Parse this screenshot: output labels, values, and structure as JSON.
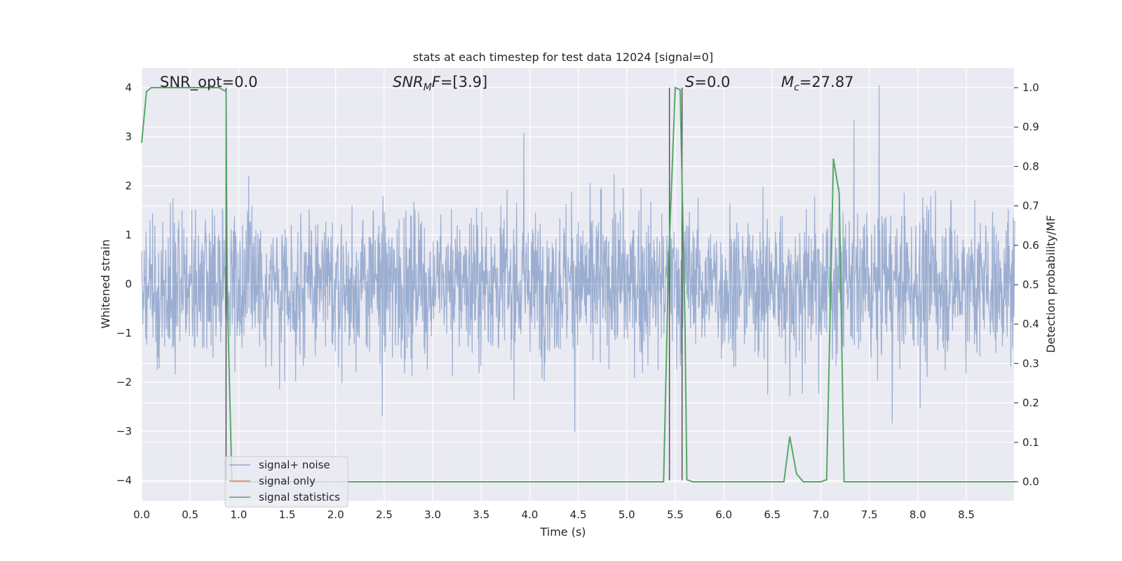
{
  "chart_data": {
    "type": "line",
    "title": "stats at each timestep for test data 12024 [signal=0]",
    "xlabel": "Time (s)",
    "ylabel": "Whitened strain",
    "y2label": "Detection probability/MF",
    "xlim": [
      0,
      9.0
    ],
    "ylim": [
      -4.4,
      4.4
    ],
    "y2lim": [
      -0.05,
      1.05
    ],
    "xticks": [
      "0.0",
      "0.5",
      "1.0",
      "1.5",
      "2.0",
      "2.5",
      "3.0",
      "3.5",
      "4.0",
      "4.5",
      "5.0",
      "5.5",
      "6.0",
      "6.5",
      "7.0",
      "7.5",
      "8.0",
      "8.5"
    ],
    "yticks": [
      "−4",
      "−3",
      "−2",
      "−1",
      "0",
      "1",
      "2",
      "3",
      "4"
    ],
    "y2ticks": [
      "0.0",
      "0.1",
      "0.2",
      "0.3",
      "0.4",
      "0.5",
      "0.6",
      "0.7",
      "0.8",
      "0.9",
      "1.0"
    ],
    "grid": true,
    "legend_placement": "lower-left",
    "colors": {
      "background": "#eaeaf2",
      "grid": "#ffffff",
      "noise": "#4c72b0",
      "signal_only": "#dd8452",
      "statistics": "#55a868",
      "vlines": "#555555"
    },
    "series": [
      {
        "name": "signal+ noise",
        "description_values": "dense whitened noise, mostly within ±2, peaks near ±4",
        "noise_sigma": 1.0
      },
      {
        "name": "signal only",
        "values": []
      },
      {
        "name": "signal statistics",
        "axis": "right",
        "x": [
          0.0,
          0.05,
          0.1,
          0.2,
          0.3,
          0.4,
          0.5,
          0.6,
          0.7,
          0.8,
          0.87,
          0.88,
          0.93,
          0.95,
          1.0,
          2.0,
          3.0,
          4.0,
          5.0,
          5.38,
          5.43,
          5.5,
          5.55,
          5.6,
          5.62,
          5.68,
          6.0,
          6.5,
          6.62,
          6.68,
          6.75,
          6.82,
          7.0,
          7.06,
          7.13,
          7.19,
          7.24,
          7.5,
          8.0,
          8.5,
          9.0
        ],
        "y": [
          0.86,
          0.99,
          1.0,
          1.0,
          1.0,
          1.0,
          1.0,
          1.0,
          1.0,
          1.0,
          0.99,
          0.5,
          0.0,
          0.0,
          0.0,
          0.0,
          0.0,
          0.0,
          0.0,
          0.0,
          0.55,
          1.0,
          0.995,
          0.4,
          0.005,
          0.0,
          0.0,
          0.0,
          0.0,
          0.115,
          0.02,
          0.0,
          0.0,
          0.005,
          0.82,
          0.73,
          0.0,
          0.0,
          0.0,
          0.0,
          0.0
        ]
      }
    ],
    "vertical_lines_x": [
      0.87,
      5.44,
      5.57
    ],
    "annotations": [
      {
        "id": "snr_opt",
        "text": "SNR_opt=0.0",
        "x": 0.2
      },
      {
        "id": "snr_mf",
        "text": "=[3.9]",
        "x": 2.6
      },
      {
        "id": "s",
        "text": "=0.0",
        "x": 5.6
      },
      {
        "id": "mc",
        "text": "=27.87",
        "x": 6.6
      }
    ]
  },
  "legend": {
    "items": [
      {
        "label": "signal+ noise",
        "color": "#4c72b0"
      },
      {
        "label": "signal only",
        "color": "#dd8452"
      },
      {
        "label": "signal statistics",
        "color": "#55a868"
      }
    ]
  }
}
